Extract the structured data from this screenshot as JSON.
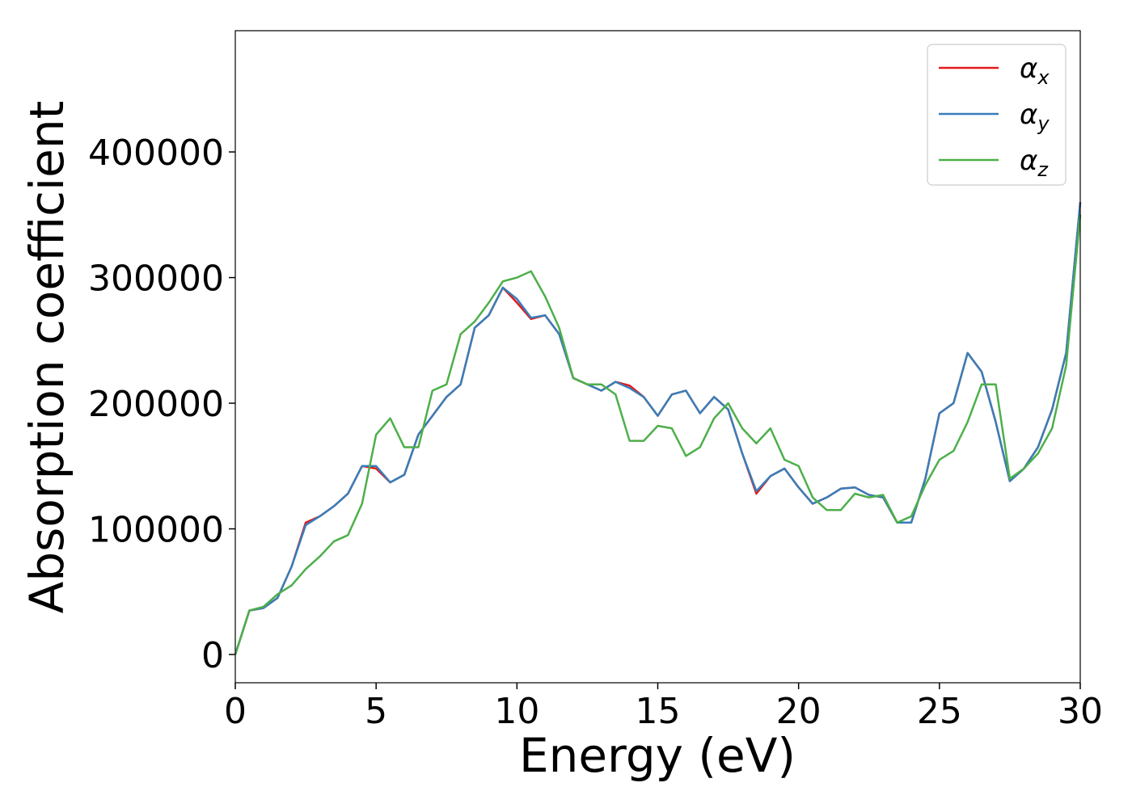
{
  "chart_data": {
    "type": "line",
    "xlabel": "Energy (eV)",
    "ylabel": "Absorption coefficient",
    "x": [
      0,
      0.5,
      1,
      1.5,
      2,
      2.5,
      3,
      3.5,
      4,
      4.5,
      5,
      5.5,
      6,
      6.5,
      7,
      7.5,
      8,
      8.5,
      9,
      9.5,
      10,
      10.5,
      11,
      11.5,
      12,
      12.5,
      13,
      13.5,
      14,
      14.5,
      15,
      15.5,
      16,
      16.5,
      17,
      17.5,
      18,
      18.5,
      19,
      19.5,
      20,
      20.5,
      21,
      21.5,
      22,
      22.5,
      23,
      23.5,
      24,
      24.5,
      25,
      25.5,
      26,
      26.5,
      27,
      27.5,
      28,
      28.5,
      29,
      29.5,
      30
    ],
    "series": [
      {
        "name": "αx",
        "color": "#e41a1c",
        "values": [
          0,
          35000,
          37000,
          45000,
          70000,
          105000,
          110000,
          118000,
          128000,
          150000,
          148000,
          137000,
          143000,
          175000,
          190000,
          205000,
          215000,
          260000,
          270000,
          292000,
          280000,
          267000,
          270000,
          255000,
          220000,
          215000,
          210000,
          217000,
          214000,
          205000,
          190000,
          207000,
          210000,
          192000,
          205000,
          195000,
          160000,
          128000,
          142000,
          148000,
          133000,
          120000,
          125000,
          132000,
          133000,
          127000,
          125000,
          105000,
          105000,
          140000,
          192000,
          200000,
          240000,
          225000,
          185000,
          138000,
          148000,
          165000,
          195000,
          240000,
          360000
        ]
      },
      {
        "name": "αy",
        "color": "#377eb8",
        "values": [
          0,
          35000,
          37000,
          45000,
          70000,
          103000,
          110000,
          118000,
          128000,
          150000,
          150000,
          137000,
          143000,
          175000,
          190000,
          205000,
          215000,
          260000,
          270000,
          292000,
          283000,
          268000,
          270000,
          255000,
          220000,
          215000,
          210000,
          217000,
          212000,
          205000,
          190000,
          207000,
          210000,
          192000,
          205000,
          195000,
          160000,
          130000,
          142000,
          148000,
          133000,
          120000,
          125000,
          132000,
          133000,
          127000,
          125000,
          105000,
          105000,
          140000,
          192000,
          200000,
          240000,
          225000,
          185000,
          138000,
          148000,
          165000,
          195000,
          240000,
          360000
        ]
      },
      {
        "name": "αz",
        "color": "#4daf4a",
        "values": [
          0,
          35000,
          38000,
          48000,
          55000,
          68000,
          78000,
          90000,
          95000,
          120000,
          175000,
          188000,
          165000,
          165000,
          210000,
          215000,
          255000,
          265000,
          280000,
          297000,
          300000,
          305000,
          285000,
          260000,
          220000,
          215000,
          215000,
          207000,
          170000,
          170000,
          182000,
          180000,
          158000,
          165000,
          188000,
          200000,
          180000,
          168000,
          180000,
          155000,
          150000,
          125000,
          115000,
          115000,
          128000,
          125000,
          127000,
          105000,
          110000,
          135000,
          155000,
          162000,
          185000,
          215000,
          215000,
          140000,
          148000,
          160000,
          180000,
          230000,
          350000
        ]
      }
    ],
    "xlim": [
      0,
      30
    ],
    "xticks": [
      0,
      5,
      10,
      15,
      20,
      25,
      30
    ],
    "ylim": [
      -22500,
      496500
    ],
    "yticks": [
      0,
      100000,
      200000,
      300000,
      400000
    ],
    "legend": "upper right",
    "grid": false
  }
}
